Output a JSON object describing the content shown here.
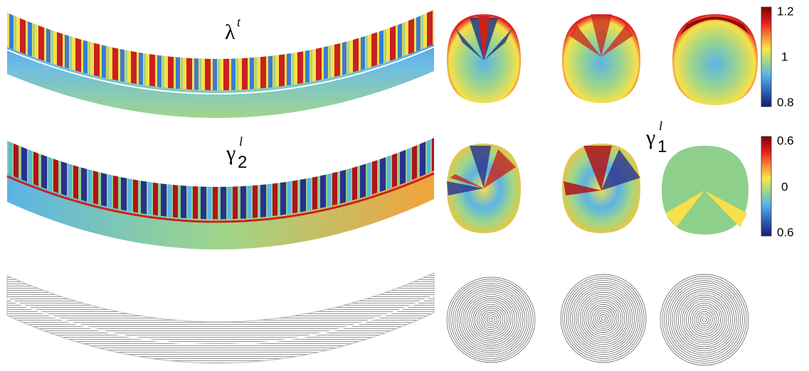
{
  "labels": [
    {
      "symbol": "λ",
      "sup": "t"
    },
    {
      "symbol": "γ",
      "sup": "l",
      "sub": "2"
    },
    {
      "symbol": "γ",
      "sup": "l",
      "sub": "1"
    }
  ],
  "colorbars": [
    {
      "ticks": [
        "1.2",
        "1",
        "0.8"
      ]
    },
    {
      "ticks": [
        "0.6",
        "0",
        "0.6"
      ]
    }
  ]
}
